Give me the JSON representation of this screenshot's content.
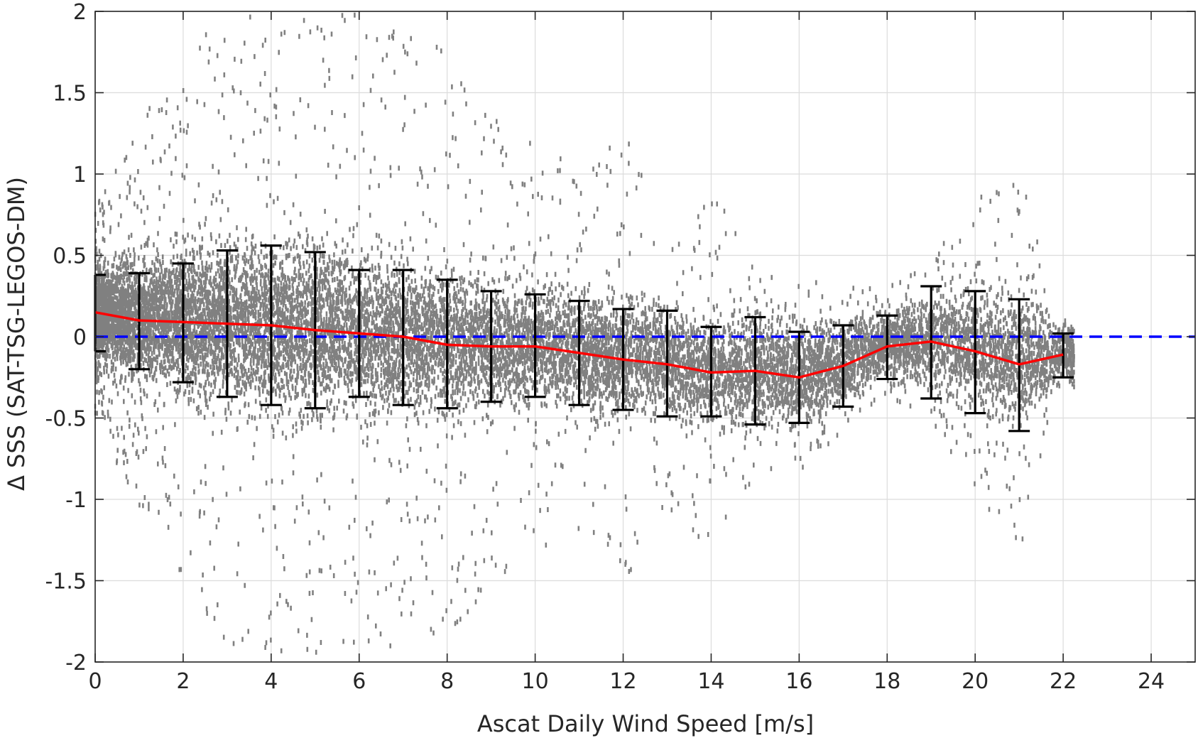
{
  "chart_data": {
    "type": "scatter",
    "title": "",
    "xlabel": "Ascat Daily Wind Speed [m/s]",
    "ylabel": "Δ SSS (SAT-TSG-LEGOS-DM)",
    "xlim": [
      0,
      25
    ],
    "ylim": [
      -2,
      2
    ],
    "xticks": [
      0,
      2,
      4,
      6,
      8,
      10,
      12,
      14,
      16,
      18,
      20,
      22,
      24
    ],
    "yticks": [
      -2,
      -1.5,
      -1,
      -0.5,
      0,
      0.5,
      1,
      1.5,
      2
    ],
    "ytick_labels": [
      "-2",
      "-1.5",
      "-1",
      "-0.5",
      "0",
      "0.5",
      "1",
      "1.5",
      "2"
    ],
    "grid": true,
    "legend": "none",
    "scatter_cloud": {
      "color": "#808080",
      "wind_speed_bins": [
        0,
        1,
        2,
        3,
        4,
        5,
        6,
        7,
        8,
        9,
        10,
        11,
        12,
        13,
        14,
        15,
        16,
        17,
        18,
        19,
        20,
        21,
        22
      ],
      "center": [
        0.14,
        0.12,
        0.09,
        0.08,
        0.07,
        0.05,
        0.02,
        0.0,
        -0.04,
        -0.05,
        -0.05,
        -0.09,
        -0.12,
        -0.15,
        -0.2,
        -0.2,
        -0.24,
        -0.15,
        -0.05,
        -0.02,
        -0.08,
        -0.15,
        -0.1
      ],
      "core_half_width": [
        0.25,
        0.3,
        0.37,
        0.42,
        0.45,
        0.45,
        0.42,
        0.4,
        0.38,
        0.34,
        0.3,
        0.3,
        0.3,
        0.3,
        0.28,
        0.3,
        0.27,
        0.22,
        0.16,
        0.25,
        0.3,
        0.35,
        0.15
      ],
      "outlier_extent": [
        0.65,
        1.2,
        1.6,
        2.0,
        2.0,
        2.0,
        2.0,
        1.9,
        1.8,
        1.5,
        1.3,
        1.1,
        1.4,
        0.9,
        1.1,
        0.7,
        0.6,
        0.45,
        0.35,
        0.5,
        0.9,
        1.3,
        0.0
      ]
    },
    "series": [
      {
        "type": "errorbar",
        "color": "#000000",
        "x": [
          0,
          1,
          2,
          3,
          4,
          5,
          6,
          7,
          8,
          9,
          10,
          11,
          12,
          13,
          14,
          15,
          16,
          17,
          18,
          19,
          20,
          21,
          22
        ],
        "mean": [
          0.15,
          0.1,
          0.09,
          0.08,
          0.07,
          0.04,
          0.02,
          0.0,
          -0.05,
          -0.06,
          -0.06,
          -0.1,
          -0.14,
          -0.17,
          -0.22,
          -0.21,
          -0.25,
          -0.18,
          -0.06,
          -0.03,
          -0.09,
          -0.17,
          -0.11
        ],
        "lower": [
          -0.09,
          -0.2,
          -0.28,
          -0.37,
          -0.42,
          -0.44,
          -0.37,
          -0.42,
          -0.44,
          -0.4,
          -0.37,
          -0.42,
          -0.45,
          -0.49,
          -0.49,
          -0.54,
          -0.53,
          -0.43,
          -0.26,
          -0.38,
          -0.47,
          -0.58,
          -0.25
        ],
        "upper": [
          0.38,
          0.39,
          0.45,
          0.53,
          0.56,
          0.52,
          0.41,
          0.41,
          0.35,
          0.28,
          0.26,
          0.22,
          0.17,
          0.16,
          0.06,
          0.12,
          0.03,
          0.07,
          0.13,
          0.31,
          0.28,
          0.23,
          0.02
        ]
      },
      {
        "type": "line",
        "color": "#ff0000",
        "x": [
          0,
          1,
          2,
          3,
          4,
          5,
          6,
          7,
          8,
          9,
          10,
          11,
          12,
          13,
          14,
          15,
          16,
          17,
          18,
          19,
          20,
          21,
          22
        ],
        "values": [
          0.15,
          0.1,
          0.09,
          0.08,
          0.07,
          0.04,
          0.02,
          0.0,
          -0.05,
          -0.06,
          -0.06,
          -0.1,
          -0.14,
          -0.17,
          -0.22,
          -0.21,
          -0.25,
          -0.18,
          -0.06,
          -0.03,
          -0.09,
          -0.17,
          -0.11
        ]
      },
      {
        "type": "reference-line",
        "style": "dashed",
        "color": "#0000ff",
        "y": 0
      }
    ]
  }
}
